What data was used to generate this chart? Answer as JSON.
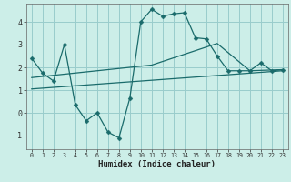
{
  "title": "",
  "xlabel": "Humidex (Indice chaleur)",
  "background_color": "#cceee8",
  "grid_color": "#99cccc",
  "line_color": "#1a6b6b",
  "xlim": [
    -0.5,
    23.5
  ],
  "ylim": [
    -1.6,
    4.8
  ],
  "yticks": [
    -1,
    0,
    1,
    2,
    3,
    4
  ],
  "xticks": [
    0,
    1,
    2,
    3,
    4,
    5,
    6,
    7,
    8,
    9,
    10,
    11,
    12,
    13,
    14,
    15,
    16,
    17,
    18,
    19,
    20,
    21,
    22,
    23
  ],
  "main_y": [
    2.4,
    1.75,
    1.4,
    3.0,
    0.35,
    -0.35,
    0.0,
    -0.85,
    -1.1,
    0.65,
    4.0,
    4.55,
    4.25,
    4.35,
    4.4,
    3.3,
    3.25,
    2.5,
    1.85,
    1.85,
    1.85,
    2.2,
    1.85,
    1.9
  ],
  "trend_x": [
    0,
    23
  ],
  "trend_y": [
    1.05,
    1.85
  ],
  "envelope_x": [
    0,
    11,
    17,
    20,
    23
  ],
  "envelope_y": [
    1.55,
    2.1,
    3.05,
    1.85,
    1.9
  ],
  "marker_size": 2.5
}
